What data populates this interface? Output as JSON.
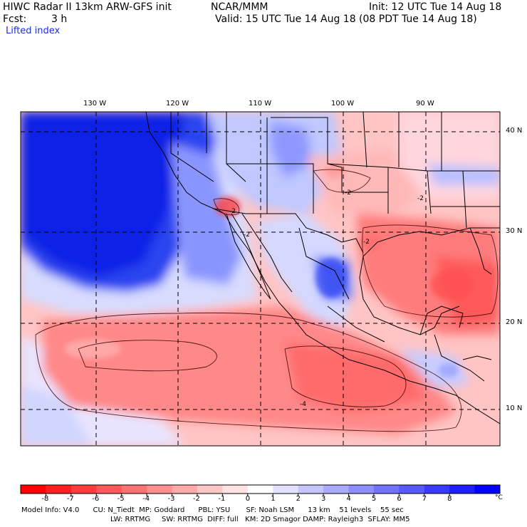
{
  "header": {
    "title": "HIWC Radar II 13km ARW-GFS init",
    "org": "NCAR/MMM",
    "init": "Init: 12 UTC Tue 14 Aug 18",
    "fcst_label": "Fcst:",
    "fcst_value": "3 h",
    "valid": "Valid: 15 UTC Tue 14 Aug 18 (08 PDT Tue 14 Aug 18)",
    "field": "Lifted index"
  },
  "map": {
    "lon_labels": [
      "130 W",
      "120 W",
      "110 W",
      "100 W",
      "90 W"
    ],
    "lat_labels": [
      "40 N",
      "30 N",
      "20 N",
      "10 N"
    ],
    "contour_labels": [
      "-2",
      "-2",
      "-2",
      "-2",
      "-2",
      "-4"
    ]
  },
  "colorbar": {
    "ticks": [
      "-8",
      "-7",
      "-6",
      "-5",
      "-4",
      "-3",
      "-2",
      "-1",
      "0",
      "1",
      "2",
      "3",
      "4",
      "5",
      "6",
      "7",
      "8"
    ],
    "unit": "°C",
    "colors": [
      "#ff0000",
      "#ff1e1e",
      "#ff3a3a",
      "#ff5858",
      "#ff7272",
      "#ff8e8e",
      "#ffaaaa",
      "#ffc6c6",
      "#ffe2e2",
      "#ffffff",
      "#e2e2ff",
      "#c6c6ff",
      "#aaaaff",
      "#8e8eff",
      "#7272ff",
      "#5858ff",
      "#3a3aff",
      "#1e1eff",
      "#0000ff"
    ]
  },
  "footer": {
    "line1": "Model Info: V4.0      CU: N_Tiedt  MP: Goddard      PBL: YSU       SF: Noah LSM      13 km    51 levels    55 sec",
    "line2": "LW: RRTMG     SW: RRTMG  DIFF: full   KM: 2D Smagor DAMP: Rayleigh3  SFLAY: MM5"
  }
}
